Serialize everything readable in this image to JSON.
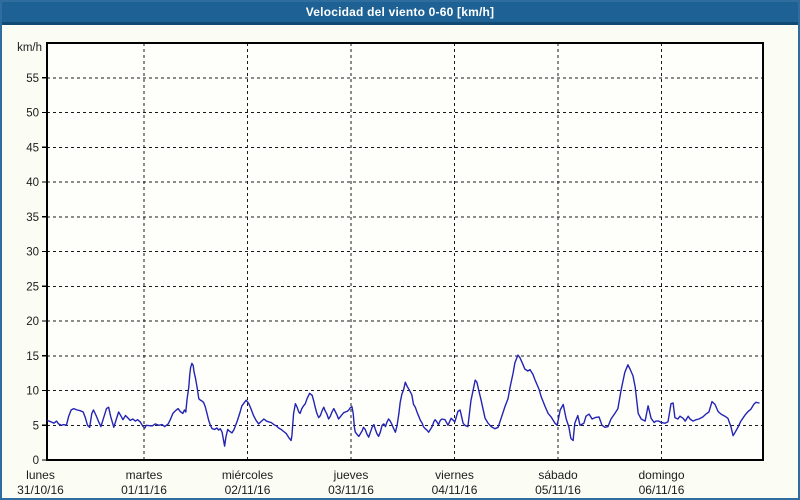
{
  "window": {
    "title": "Velocidad del viento 0-60 [km/h]"
  },
  "colors": {
    "titlebar": "#1e6295",
    "titlebar_edge": "#114a75",
    "window_border": "#2e6d9d",
    "page_bg": "#fbfdf5",
    "plot_bg": "#fefffb",
    "grid": "#1a1a1a",
    "frame": "#000000",
    "text": "#1c1c1c",
    "line": "#2424b4"
  },
  "chart_data": {
    "type": "line",
    "title": "Velocidad del viento 0-60 [km/h]",
    "unit_label": "km/h",
    "ylabel": "km/h",
    "xlabel": "",
    "ylim": [
      0,
      60
    ],
    "y_ticks": [
      0,
      5,
      10,
      15,
      20,
      25,
      30,
      35,
      40,
      45,
      50,
      55
    ],
    "grid": "dashed",
    "legend": "none",
    "x_days": [
      {
        "name": "lunes",
        "date": "31/10/16"
      },
      {
        "name": "martes",
        "date": "01/11/16"
      },
      {
        "name": "miércoles",
        "date": "02/11/16"
      },
      {
        "name": "jueves",
        "date": "03/11/16"
      },
      {
        "name": "viernes",
        "date": "04/11/16"
      },
      {
        "name": "sábado",
        "date": "05/11/16"
      },
      {
        "name": "domingo",
        "date": "06/11/16"
      }
    ],
    "series": [
      {
        "name": "Velocidad del viento",
        "color": "#2424b4",
        "x_unit": "hours_since_monday_00h",
        "y_unit": "km/h",
        "points": [
          [
            1.5,
            5.7
          ],
          [
            2.4,
            5.5
          ],
          [
            3.1,
            5.3
          ],
          [
            3.7,
            5.6
          ],
          [
            4.2,
            5.2
          ],
          [
            4.8,
            5
          ],
          [
            5.4,
            5.1
          ],
          [
            6,
            5
          ],
          [
            6.5,
            6.2
          ],
          [
            7.1,
            7.2
          ],
          [
            7.7,
            7.4
          ],
          [
            8.5,
            7.2
          ],
          [
            9.2,
            7.1
          ],
          [
            9.9,
            6.9
          ],
          [
            10.4,
            6.1
          ],
          [
            10.9,
            5
          ],
          [
            11.4,
            4.7
          ],
          [
            11.9,
            6.7
          ],
          [
            12.3,
            7.2
          ],
          [
            12.9,
            6.4
          ],
          [
            13.5,
            5.5
          ],
          [
            14,
            4.8
          ],
          [
            14.7,
            6.2
          ],
          [
            15.3,
            7.4
          ],
          [
            15.8,
            7.6
          ],
          [
            16.3,
            6.2
          ],
          [
            17,
            4.7
          ],
          [
            17.6,
            5.9
          ],
          [
            18.1,
            6.9
          ],
          [
            18.7,
            6.3
          ],
          [
            19.1,
            5.8
          ],
          [
            19.7,
            6.4
          ],
          [
            20.2,
            6.1
          ],
          [
            20.8,
            5.7
          ],
          [
            21.4,
            5.9
          ],
          [
            22,
            5.6
          ],
          [
            22.5,
            5.8
          ],
          [
            23.1,
            5.5
          ],
          [
            23.8,
            4.8
          ],
          [
            24.2,
            4.6
          ],
          [
            24.5,
            5
          ],
          [
            25.9,
            4.9
          ],
          [
            26.6,
            5.2
          ],
          [
            27.4,
            5
          ],
          [
            28.2,
            5.1
          ],
          [
            28.8,
            4.8
          ],
          [
            29.6,
            5.2
          ],
          [
            30.1,
            5.8
          ],
          [
            30.7,
            6.7
          ],
          [
            31.3,
            7.1
          ],
          [
            31.9,
            7.4
          ],
          [
            32.4,
            7
          ],
          [
            33,
            6.7
          ],
          [
            33.4,
            7.2
          ],
          [
            33.7,
            6.9
          ],
          [
            34,
            8.8
          ],
          [
            34.4,
            10.5
          ],
          [
            34.6,
            12.2
          ],
          [
            34.8,
            13.3
          ],
          [
            35.1,
            13.9
          ],
          [
            35.4,
            13.6
          ],
          [
            35.6,
            12.7
          ],
          [
            35.9,
            11.9
          ],
          [
            36.1,
            11.2
          ],
          [
            36.4,
            10.1
          ],
          [
            36.7,
            8.8
          ],
          [
            37.1,
            8.6
          ],
          [
            37.4,
            8.5
          ],
          [
            37.8,
            8.3
          ],
          [
            38.2,
            7.7
          ],
          [
            38.6,
            6.7
          ],
          [
            39,
            5.7
          ],
          [
            39.4,
            5
          ],
          [
            39.8,
            4.5
          ],
          [
            40.4,
            4.4
          ],
          [
            40.9,
            4.6
          ],
          [
            41.3,
            4.3
          ],
          [
            41.7,
            4.5
          ],
          [
            42.1,
            4
          ],
          [
            42.7,
            2
          ],
          [
            43,
            3.3
          ],
          [
            43.4,
            4.4
          ],
          [
            43.7,
            4.2
          ],
          [
            44.4,
            3.9
          ],
          [
            44.9,
            4.4
          ],
          [
            45.6,
            5.6
          ],
          [
            46.2,
            6.7
          ],
          [
            46.7,
            7.8
          ],
          [
            47.3,
            8.3
          ],
          [
            47.7,
            8.6
          ],
          [
            48.3,
            8.1
          ],
          [
            48.8,
            7.4
          ],
          [
            49.4,
            6.4
          ],
          [
            50,
            5.7
          ],
          [
            50.6,
            5.2
          ],
          [
            51.1,
            5.5
          ],
          [
            51.8,
            5.9
          ],
          [
            52.4,
            5.6
          ],
          [
            52.9,
            5.5
          ],
          [
            53.5,
            5.4
          ],
          [
            54.1,
            5.1
          ],
          [
            54.7,
            4.9
          ],
          [
            55.2,
            4.6
          ],
          [
            55.8,
            4.4
          ],
          [
            56.4,
            4.1
          ],
          [
            57,
            3.8
          ],
          [
            57.6,
            3.2
          ],
          [
            58.1,
            2.8
          ],
          [
            58.3,
            3.5
          ],
          [
            58.7,
            6.7
          ],
          [
            59.1,
            8.1
          ],
          [
            59.5,
            7.6
          ],
          [
            59.9,
            6.9
          ],
          [
            60.2,
            6.7
          ],
          [
            60.6,
            7.4
          ],
          [
            61,
            7.8
          ],
          [
            61.4,
            8.1
          ],
          [
            61.8,
            8.8
          ],
          [
            62.4,
            9.6
          ],
          [
            63,
            9.3
          ],
          [
            63.4,
            8.4
          ],
          [
            63.7,
            7.6
          ],
          [
            64.1,
            6.7
          ],
          [
            64.5,
            6.1
          ],
          [
            64.9,
            6.4
          ],
          [
            65.3,
            7.1
          ],
          [
            65.7,
            7.6
          ],
          [
            66,
            7.1
          ],
          [
            66.4,
            6.6
          ],
          [
            66.8,
            5.9
          ],
          [
            67.2,
            6.3
          ],
          [
            67.6,
            6.9
          ],
          [
            68,
            7.4
          ],
          [
            68.4,
            6.9
          ],
          [
            68.8,
            6.4
          ],
          [
            69.1,
            5.9
          ],
          [
            69.5,
            6.2
          ],
          [
            69.9,
            6.5
          ],
          [
            70.3,
            6.8
          ],
          [
            70.7,
            6.9
          ],
          [
            71.1,
            7
          ],
          [
            71.5,
            7.2
          ],
          [
            71.8,
            7.5
          ],
          [
            72.2,
            7.7
          ],
          [
            72.5,
            6.7
          ],
          [
            72.8,
            4.7
          ],
          [
            73,
            4
          ],
          [
            73.4,
            3.7
          ],
          [
            73.8,
            3.4
          ],
          [
            74.2,
            3.8
          ],
          [
            74.6,
            4.2
          ],
          [
            74.9,
            4.7
          ],
          [
            75.3,
            4.4
          ],
          [
            75.7,
            3.7
          ],
          [
            76.1,
            3.3
          ],
          [
            76.5,
            4
          ],
          [
            76.9,
            4.7
          ],
          [
            77.3,
            5.1
          ],
          [
            77.6,
            4.5
          ],
          [
            78,
            3.8
          ],
          [
            78.4,
            3.4
          ],
          [
            78.8,
            4
          ],
          [
            79.2,
            5
          ],
          [
            79.6,
            5.2
          ],
          [
            80,
            4.8
          ],
          [
            80.3,
            5.4
          ],
          [
            80.7,
            5.9
          ],
          [
            81.1,
            5.6
          ],
          [
            81.5,
            5.1
          ],
          [
            81.9,
            4.5
          ],
          [
            82.3,
            4
          ],
          [
            82.7,
            5
          ],
          [
            83.1,
            6.7
          ],
          [
            83.4,
            8.3
          ],
          [
            83.8,
            9.5
          ],
          [
            84.2,
            10.1
          ],
          [
            84.6,
            11.2
          ],
          [
            85,
            10.6
          ],
          [
            85.4,
            10.2
          ],
          [
            86.1,
            9.4
          ],
          [
            86.5,
            8
          ],
          [
            86.9,
            7.6
          ],
          [
            87.3,
            6.9
          ],
          [
            87.7,
            6.3
          ],
          [
            88.1,
            5.7
          ],
          [
            88.5,
            5.3
          ],
          [
            88.8,
            4.8
          ],
          [
            89.2,
            4.5
          ],
          [
            89.6,
            4.3
          ],
          [
            90,
            4
          ],
          [
            90.4,
            4.4
          ],
          [
            90.8,
            4.8
          ],
          [
            91.2,
            5.5
          ],
          [
            91.5,
            5.8
          ],
          [
            91.9,
            5.5
          ],
          [
            92.3,
            5.1
          ],
          [
            92.7,
            5.7
          ],
          [
            93.1,
            5.9
          ],
          [
            93.8,
            5.8
          ],
          [
            94.5,
            5
          ],
          [
            95.2,
            6
          ],
          [
            96.1,
            5.5
          ],
          [
            96.8,
            7
          ],
          [
            97.3,
            7.2
          ],
          [
            98,
            5.3
          ],
          [
            98.4,
            5
          ],
          [
            99.1,
            4.8
          ],
          [
            99.8,
            8.5
          ],
          [
            100.8,
            11.5
          ],
          [
            101.2,
            11.2
          ],
          [
            101.7,
            9.8
          ],
          [
            102.1,
            8.8
          ],
          [
            103.1,
            6
          ],
          [
            103.8,
            5.3
          ],
          [
            104.5,
            4.8
          ],
          [
            105.4,
            4.5
          ],
          [
            106.1,
            4.7
          ],
          [
            106.8,
            6
          ],
          [
            107.7,
            7.7
          ],
          [
            108.4,
            8.8
          ],
          [
            108.9,
            10.5
          ],
          [
            109.6,
            12.5
          ],
          [
            110,
            14
          ],
          [
            110.7,
            15.1
          ],
          [
            111.2,
            14.7
          ],
          [
            111.9,
            13.7
          ],
          [
            112.3,
            13.1
          ],
          [
            113,
            12.8
          ],
          [
            113.5,
            13
          ],
          [
            114.2,
            12.3
          ],
          [
            114.7,
            11.5
          ],
          [
            115.6,
            10.2
          ],
          [
            116.1,
            9.1
          ],
          [
            117,
            7.7
          ],
          [
            117.7,
            6.7
          ],
          [
            118.4,
            6.2
          ],
          [
            119.3,
            5.3
          ],
          [
            119.8,
            5
          ],
          [
            120.5,
            7.2
          ],
          [
            121.2,
            8
          ],
          [
            121.9,
            5.9
          ],
          [
            122.5,
            4.8
          ],
          [
            123,
            3.1
          ],
          [
            123.5,
            2.8
          ],
          [
            123.9,
            5.3
          ],
          [
            124.6,
            6.4
          ],
          [
            125.1,
            5
          ],
          [
            126,
            5.3
          ],
          [
            126.5,
            6.3
          ],
          [
            127.2,
            6.6
          ],
          [
            127.9,
            5.9
          ],
          [
            128.6,
            6.1
          ],
          [
            129.5,
            6.2
          ],
          [
            130.2,
            5
          ],
          [
            130.9,
            4.7
          ],
          [
            131.6,
            4.8
          ],
          [
            132.3,
            5.9
          ],
          [
            133.2,
            6.7
          ],
          [
            133.9,
            7.4
          ],
          [
            134.6,
            10
          ],
          [
            135.5,
            12.6
          ],
          [
            136.2,
            13.7
          ],
          [
            136.7,
            13.1
          ],
          [
            137.4,
            12.1
          ],
          [
            137.9,
            10.5
          ],
          [
            138.6,
            6.7
          ],
          [
            139.3,
            5.9
          ],
          [
            140.2,
            5.6
          ],
          [
            140.9,
            7.8
          ],
          [
            141.6,
            6
          ],
          [
            142.3,
            5.4
          ],
          [
            142.7,
            5.6
          ],
          [
            143.4,
            5.6
          ],
          [
            143.9,
            5.4
          ],
          [
            144.8,
            5.3
          ],
          [
            145.5,
            5.5
          ],
          [
            146.2,
            8.1
          ],
          [
            146.7,
            8.2
          ],
          [
            147.1,
            6.1
          ],
          [
            147.8,
            5.9
          ],
          [
            148.3,
            6.3
          ],
          [
            149,
            6
          ],
          [
            149.5,
            5.6
          ],
          [
            150.2,
            6.3
          ],
          [
            150.6,
            5.9
          ],
          [
            151.3,
            5.6
          ],
          [
            152,
            5.8
          ],
          [
            152.7,
            5.9
          ],
          [
            153.6,
            6.2
          ],
          [
            154.3,
            6.6
          ],
          [
            155,
            6.9
          ],
          [
            155.7,
            8.4
          ],
          [
            156.4,
            8
          ],
          [
            157.1,
            7
          ],
          [
            157.8,
            6.6
          ],
          [
            158.7,
            6.3
          ],
          [
            159.4,
            6
          ],
          [
            160.1,
            4.8
          ],
          [
            160.6,
            3.5
          ],
          [
            161.1,
            4
          ],
          [
            161.8,
            4.8
          ],
          [
            162.4,
            5.6
          ],
          [
            163.4,
            6.5
          ],
          [
            164.1,
            7
          ],
          [
            164.7,
            7.3
          ],
          [
            165.4,
            8
          ],
          [
            165.9,
            8.3
          ],
          [
            166.6,
            8.2
          ]
        ]
      }
    ]
  }
}
